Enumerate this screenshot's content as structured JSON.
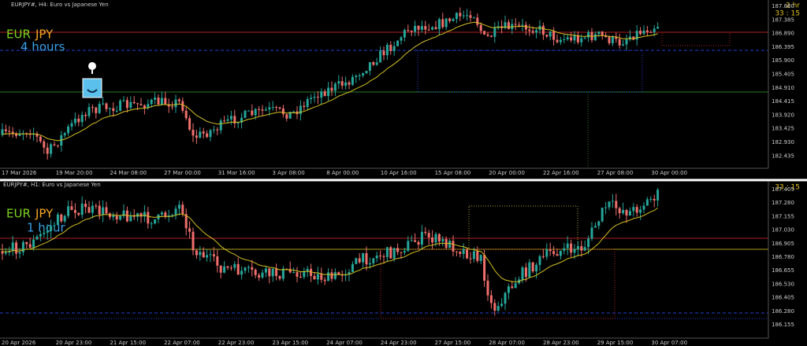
{
  "top_panel": {
    "header": "EURJPY#, H4: Euro vs Japanese Yen",
    "symbol_base": "EUR",
    "symbol_quote": "JPY",
    "timeframe": "4 hours",
    "timer_label": "2 hr",
    "timer": "33 : 15",
    "price_labels": [
      "187.880",
      "187.385",
      "186.890",
      "186.395",
      "185.900",
      "185.405",
      "184.910",
      "184.415",
      "183.920",
      "183.425",
      "182.930",
      "182.435"
    ],
    "time_labels": [
      "17 Mar 2026",
      "19 Mar 20:00",
      "24 Mar 08:00",
      "27 Mar 00:00",
      "31 Mar 16:00",
      "3 Apr 08:00",
      "8 Apr 00:00",
      "10 Apr 16:00",
      "15 Apr 08:00",
      "20 Apr 00:00",
      "22 Apr 16:00",
      "27 Apr 08:00",
      "30 Apr 00:00"
    ]
  },
  "bottom_panel": {
    "header": "EURJPY#, H1: Euro vs Japanese Yen",
    "symbol_base": "EUR",
    "symbol_quote": "JPY",
    "timeframe": "1 hour",
    "timer": "33 : 15",
    "price_labels": [
      "187.405",
      "187.280",
      "187.155",
      "187.030",
      "186.905",
      "186.780",
      "186.655",
      "186.530",
      "186.405",
      "186.280",
      "186.155"
    ],
    "time_labels": [
      "20 Apr 2026",
      "20 Apr 23:00",
      "21 Apr 15:00",
      "22 Apr 07:00",
      "22 Apr 23:00",
      "23 Apr 15:00",
      "24 Apr 07:00",
      "24 Apr 23:00",
      "27 Apr 15:00",
      "28 Apr 07:00",
      "28 Apr 23:00",
      "29 Apr 15:00",
      "30 Apr 07:00"
    ]
  }
}
